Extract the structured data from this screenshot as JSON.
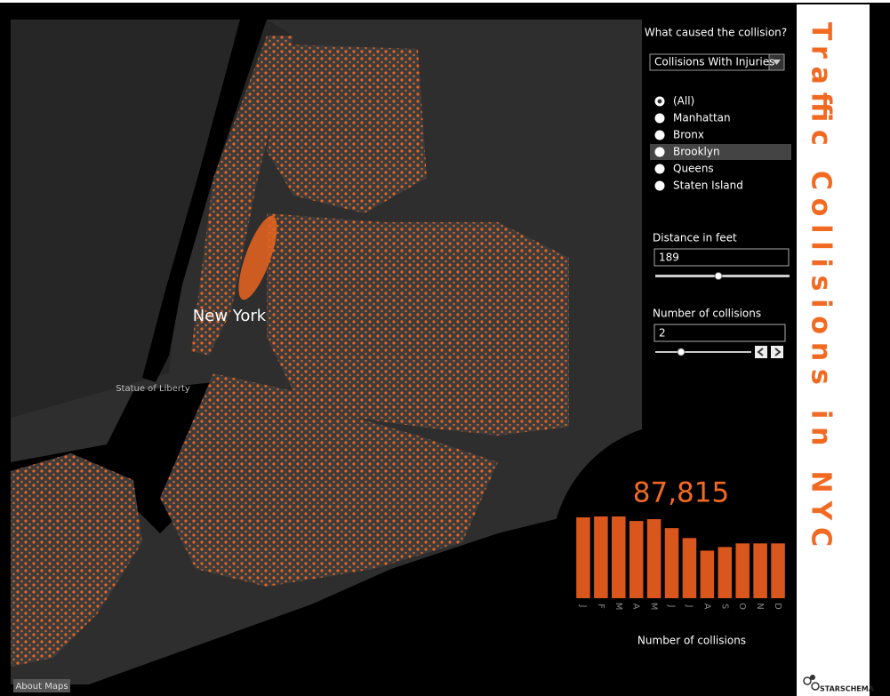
{
  "map": {
    "labels": [
      "New York",
      "Statue of Liberty"
    ],
    "about": "About Maps"
  },
  "filters": {
    "cause": {
      "label": "What caused the collision?",
      "selected": "Collisions With Injuries"
    },
    "borough": {
      "options": [
        "(All)",
        "Manhattan",
        "Bronx",
        "Brooklyn",
        "Queens",
        "Staten Island"
      ],
      "selected": 0,
      "highlighted": 3
    },
    "distance": {
      "label": "Distance in feet",
      "value": 189
    },
    "collisions": {
      "label": "Number of collisions",
      "value": 2
    }
  },
  "title": "Traffic Collisions in NYC",
  "logo": "STARSCHEMA",
  "chart_data": {
    "type": "bar",
    "total": "87,815",
    "categories": [
      "J",
      "F",
      "M",
      "A",
      "M",
      "J",
      "J",
      "A",
      "S",
      "O",
      "N",
      "D"
    ],
    "values": [
      8940,
      9040,
      9040,
      8540,
      8740,
      7750,
      6650,
      5260,
      5660,
      6060,
      6060,
      6060
    ],
    "color": "#d9561c",
    "x_label": "Number of collisions"
  }
}
